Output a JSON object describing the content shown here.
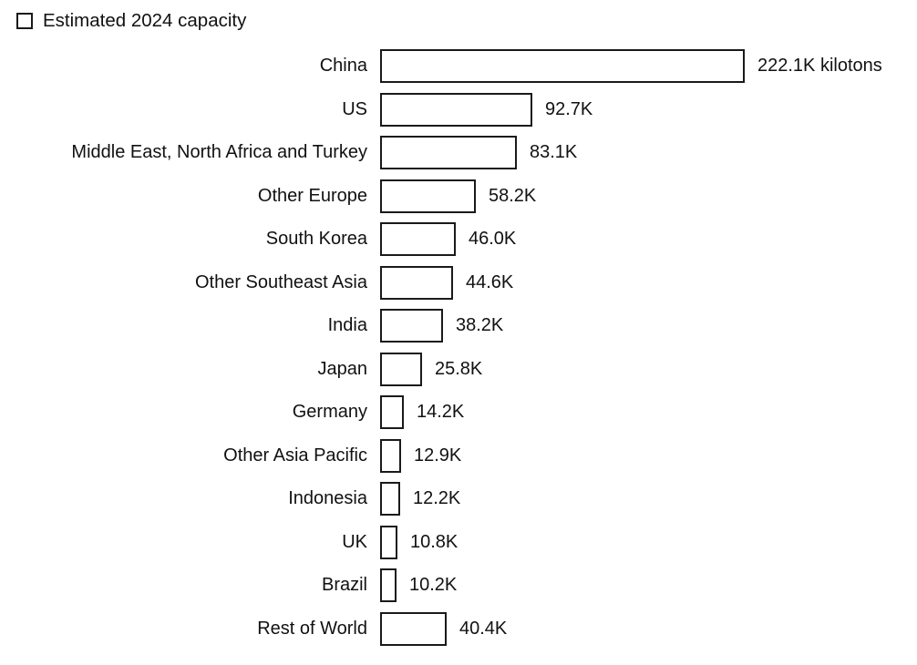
{
  "colors": {
    "background": "#ffffff",
    "text": "#111111",
    "bar_stroke": "#1a1a1a",
    "bar_fill": "#ffffff"
  },
  "chart_data": {
    "type": "bar",
    "orientation": "horizontal",
    "legend": "Estimated 2024 capacity",
    "legend_position": "top-left",
    "legend_swatch": "outlined-square",
    "unit": "K kilotons (thousands of kilotons)",
    "grid": false,
    "axes_visible": false,
    "xlim": [
      0,
      222.1
    ],
    "categories": [
      "China",
      "US",
      "Middle East, North Africa and Turkey",
      "Other Europe",
      "South Korea",
      "Other Southeast Asia",
      "India",
      "Japan",
      "Germany",
      "Other Asia Pacific",
      "Indonesia",
      "UK",
      "Brazil",
      "Rest of World"
    ],
    "values": [
      222.1,
      92.7,
      83.1,
      58.2,
      46.0,
      44.6,
      38.2,
      25.8,
      14.2,
      12.9,
      12.2,
      10.8,
      10.2,
      40.4
    ],
    "value_labels": [
      "222.1K kilotons",
      "92.7K",
      "83.1K",
      "58.2K",
      "46.0K",
      "44.6K",
      "38.2K",
      "25.8K",
      "14.2K",
      "12.9K",
      "12.2K",
      "10.8K",
      "10.2K",
      "40.4K"
    ]
  }
}
